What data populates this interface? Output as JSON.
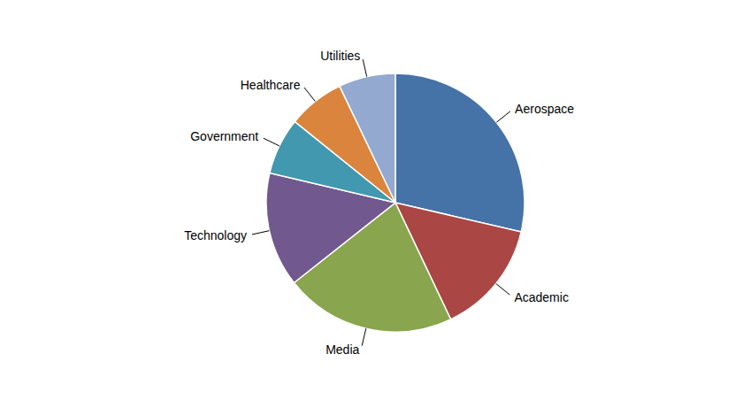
{
  "chart_data": {
    "type": "pie",
    "categories": [
      "Aerospace",
      "Academic",
      "Media",
      "Technology",
      "Government",
      "Healthcare",
      "Utilities"
    ],
    "values": [
      28.6,
      14.3,
      21.4,
      14.3,
      7.1,
      7.1,
      7.1
    ],
    "colors": [
      "#4572a7",
      "#aa4643",
      "#89a54e",
      "#71588f",
      "#4198af",
      "#db843d",
      "#93a9cf"
    ]
  }
}
